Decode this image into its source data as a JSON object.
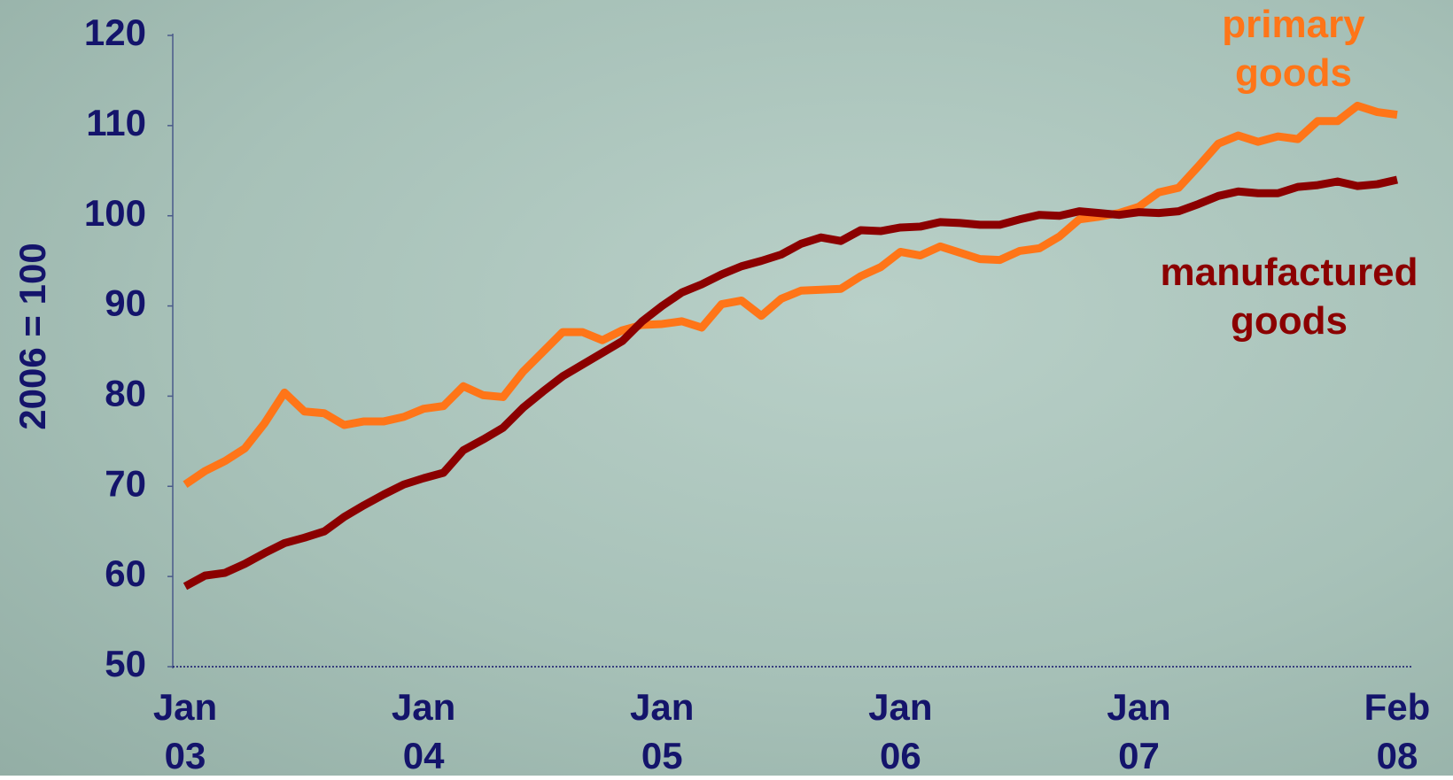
{
  "chart_data": {
    "type": "line",
    "y_label": "2006 = 100",
    "categories": [
      "Jan 03",
      null,
      null,
      null,
      null,
      null,
      null,
      null,
      null,
      null,
      null,
      null,
      "Jan 04",
      null,
      null,
      null,
      null,
      null,
      null,
      null,
      null,
      null,
      null,
      null,
      "Jan 05",
      null,
      null,
      null,
      null,
      null,
      null,
      null,
      null,
      null,
      null,
      null,
      "Jan 06",
      null,
      null,
      null,
      null,
      null,
      null,
      null,
      null,
      null,
      null,
      null,
      "Jan 07",
      null,
      null,
      null,
      null,
      null,
      null,
      null,
      null,
      null,
      null,
      null,
      null,
      "Feb 08"
    ],
    "series": [
      {
        "name": "primary goods",
        "color": "#ff7518",
        "values": [
          70.2,
          71.7,
          72.8,
          74.2,
          77,
          80.4,
          78.3,
          78.1,
          76.8,
          77.2,
          77.2,
          77.7,
          78.6,
          78.9,
          81.1,
          80.1,
          79.9,
          82.7,
          84.9,
          87.1,
          87.1,
          86.2,
          87.3,
          87.9,
          88,
          88.3,
          87.6,
          90.2,
          90.6,
          88.9,
          90.8,
          91.7,
          91.8,
          91.9,
          93.3,
          94.3,
          96,
          95.6,
          96.6,
          95.9,
          95.2,
          95.1,
          96.1,
          96.4,
          97.7,
          99.6,
          99.9,
          100.3,
          101,
          102.6,
          103.1,
          105.5,
          108,
          108.9,
          108.2,
          108.8,
          108.5,
          110.5,
          110.5,
          112.2,
          111.5,
          111.2
        ]
      },
      {
        "name": "manufactured goods",
        "color": "#8b0000",
        "values": [
          58.9,
          60.1,
          60.4,
          61.4,
          62.6,
          63.7,
          64.3,
          65,
          66.6,
          67.9,
          69.1,
          70.2,
          70.9,
          71.5,
          74,
          75.2,
          76.5,
          78.7,
          80.5,
          82.2,
          83.5,
          84.8,
          86.1,
          88.3,
          90,
          91.5,
          92.4,
          93.5,
          94.4,
          95,
          95.7,
          96.9,
          97.6,
          97.2,
          98.4,
          98.3,
          98.7,
          98.8,
          99.3,
          99.2,
          99,
          99,
          99.6,
          100.1,
          100,
          100.5,
          100.3,
          100.1,
          100.4,
          100.3,
          100.5,
          101.3,
          102.2,
          102.7,
          102.5,
          102.5,
          103.2,
          103.4,
          103.8,
          103.3,
          103.5,
          104
        ]
      }
    ],
    "ylim": [
      50,
      120
    ],
    "yticks": [
      50,
      60,
      70,
      80,
      90,
      100,
      110,
      120
    ]
  }
}
